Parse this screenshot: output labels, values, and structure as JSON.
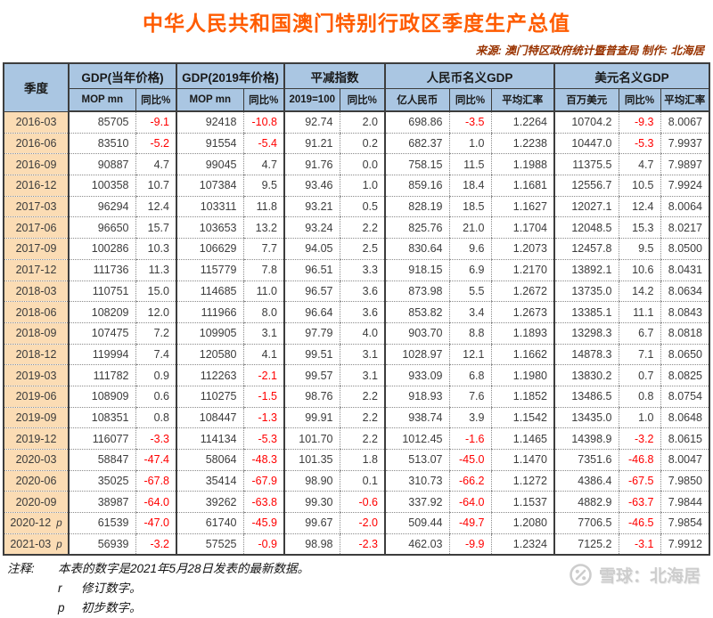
{
  "header": {
    "title": "中华人民共和国澳门特别行政区季度生产总值",
    "source": "来源: 澳门特区政府统计暨普查局  制作: 北海居"
  },
  "colors": {
    "title": "#ff5c00",
    "source": "#993300",
    "header_bg": "#aac6e2",
    "quarter_bg": "#fbdcb4",
    "negative": "#ff0000",
    "text": "#3c3c3c",
    "watermark": "#cdcdcd"
  },
  "chart_data": {
    "type": "table",
    "title": "中华人民共和国澳门特别行政区季度生产总值",
    "quarter_col": "季度",
    "groups": [
      {
        "label": "GDP(当年价格)",
        "subs": [
          "MOP mn",
          "同比%"
        ]
      },
      {
        "label": "GDP(2019年价格)",
        "subs": [
          "MOP mn",
          "同比%"
        ]
      },
      {
        "label": "平减指数",
        "subs": [
          "2019=100",
          "同比%"
        ]
      },
      {
        "label": "人民币名义GDP",
        "subs": [
          "亿人民币",
          "同比%",
          "平均汇率"
        ]
      },
      {
        "label": "美元名义GDP",
        "subs": [
          "百万美元",
          "同比%",
          "平均汇率"
        ]
      }
    ],
    "rows": [
      {
        "quarter": "2016-03",
        "flag": "",
        "values": [
          "85705",
          "-9.1",
          "92418",
          "-10.8",
          "92.74",
          "2.0",
          "698.86",
          "-3.5",
          "1.2264",
          "10704.2",
          "-9.3",
          "8.0067"
        ]
      },
      {
        "quarter": "2016-06",
        "flag": "",
        "values": [
          "83510",
          "-5.2",
          "91554",
          "-5.4",
          "91.21",
          "0.2",
          "682.37",
          "1.0",
          "1.2238",
          "10447.0",
          "-5.3",
          "7.9937"
        ]
      },
      {
        "quarter": "2016-09",
        "flag": "",
        "values": [
          "90887",
          "4.7",
          "99045",
          "4.7",
          "91.76",
          "0.0",
          "758.15",
          "11.5",
          "1.1988",
          "11375.5",
          "4.7",
          "7.9897"
        ]
      },
      {
        "quarter": "2016-12",
        "flag": "",
        "values": [
          "100358",
          "10.7",
          "107384",
          "9.5",
          "93.46",
          "1.0",
          "859.16",
          "18.4",
          "1.1681",
          "12556.7",
          "10.5",
          "7.9924"
        ]
      },
      {
        "quarter": "2017-03",
        "flag": "",
        "values": [
          "96294",
          "12.4",
          "103311",
          "11.8",
          "93.21",
          "0.5",
          "828.19",
          "18.5",
          "1.1627",
          "12027.1",
          "12.4",
          "8.0064"
        ]
      },
      {
        "quarter": "2017-06",
        "flag": "",
        "values": [
          "96650",
          "15.7",
          "103653",
          "13.2",
          "93.24",
          "2.2",
          "825.76",
          "21.0",
          "1.1704",
          "12048.5",
          "15.3",
          "8.0217"
        ]
      },
      {
        "quarter": "2017-09",
        "flag": "",
        "values": [
          "100286",
          "10.3",
          "106629",
          "7.7",
          "94.05",
          "2.5",
          "830.64",
          "9.6",
          "1.2073",
          "12457.8",
          "9.5",
          "8.0500"
        ]
      },
      {
        "quarter": "2017-12",
        "flag": "",
        "values": [
          "111736",
          "11.3",
          "115779",
          "7.8",
          "96.51",
          "3.3",
          "918.15",
          "6.9",
          "1.2170",
          "13892.1",
          "10.6",
          "8.0431"
        ]
      },
      {
        "quarter": "2018-03",
        "flag": "",
        "values": [
          "110751",
          "15.0",
          "114685",
          "11.0",
          "96.57",
          "3.6",
          "873.98",
          "5.5",
          "1.2672",
          "13735.0",
          "14.2",
          "8.0634"
        ]
      },
      {
        "quarter": "2018-06",
        "flag": "",
        "values": [
          "108209",
          "12.0",
          "111966",
          "8.0",
          "96.64",
          "3.6",
          "853.82",
          "3.4",
          "1.2673",
          "13385.1",
          "11.1",
          "8.0843"
        ]
      },
      {
        "quarter": "2018-09",
        "flag": "",
        "values": [
          "107475",
          "7.2",
          "109905",
          "3.1",
          "97.79",
          "4.0",
          "903.70",
          "8.8",
          "1.1893",
          "13298.3",
          "6.7",
          "8.0818"
        ]
      },
      {
        "quarter": "2018-12",
        "flag": "",
        "values": [
          "119994",
          "7.4",
          "120580",
          "4.1",
          "99.51",
          "3.1",
          "1028.97",
          "12.1",
          "1.1662",
          "14878.3",
          "7.1",
          "8.0650"
        ]
      },
      {
        "quarter": "2019-03",
        "flag": "",
        "values": [
          "111782",
          "0.9",
          "112263",
          "-2.1",
          "99.57",
          "3.1",
          "933.09",
          "6.8",
          "1.1980",
          "13830.2",
          "0.7",
          "8.0825"
        ]
      },
      {
        "quarter": "2019-06",
        "flag": "",
        "values": [
          "108909",
          "0.6",
          "110275",
          "-1.5",
          "98.76",
          "2.2",
          "918.93",
          "7.6",
          "1.1852",
          "13486.5",
          "0.8",
          "8.0754"
        ]
      },
      {
        "quarter": "2019-09",
        "flag": "",
        "values": [
          "108351",
          "0.8",
          "108447",
          "-1.3",
          "99.91",
          "2.2",
          "938.74",
          "3.9",
          "1.1542",
          "13435.0",
          "1.0",
          "8.0648"
        ]
      },
      {
        "quarter": "2019-12",
        "flag": "",
        "values": [
          "116077",
          "-3.3",
          "114134",
          "-5.3",
          "101.70",
          "2.2",
          "1012.45",
          "-1.6",
          "1.1465",
          "14398.9",
          "-3.2",
          "8.0615"
        ]
      },
      {
        "quarter": "2020-03",
        "flag": "",
        "values": [
          "58847",
          "-47.4",
          "58064",
          "-48.3",
          "101.35",
          "1.8",
          "513.07",
          "-45.0",
          "1.1470",
          "7351.6",
          "-46.8",
          "8.0047"
        ]
      },
      {
        "quarter": "2020-06",
        "flag": "",
        "values": [
          "35025",
          "-67.8",
          "35414",
          "-67.9",
          "98.90",
          "0.1",
          "310.73",
          "-66.2",
          "1.1272",
          "4386.4",
          "-67.5",
          "7.9850"
        ]
      },
      {
        "quarter": "2020-09",
        "flag": "",
        "values": [
          "38987",
          "-64.0",
          "39262",
          "-63.8",
          "99.30",
          "-0.6",
          "337.92",
          "-64.0",
          "1.1537",
          "4882.9",
          "-63.7",
          "7.9844"
        ]
      },
      {
        "quarter": "2020-12",
        "flag": "p",
        "values": [
          "61539",
          "-47.0",
          "61740",
          "-45.9",
          "99.67",
          "-2.0",
          "509.44",
          "-49.7",
          "1.2080",
          "7706.5",
          "-46.5",
          "7.9854"
        ]
      },
      {
        "quarter": "2021-03",
        "flag": "p",
        "values": [
          "56939",
          "-3.2",
          "57525",
          "-0.9",
          "98.98",
          "-2.3",
          "462.03",
          "-9.9",
          "1.2324",
          "7125.2",
          "-3.1",
          "7.9912"
        ]
      }
    ]
  },
  "notes": {
    "label": "注释:",
    "line1": "本表的数字是2021年5月28日发表的最新数据。",
    "r_key": "r",
    "r_text": "修订数字。",
    "p_key": "p",
    "p_text": "初步数字。"
  },
  "watermark": {
    "text": "雪球：北海居"
  }
}
